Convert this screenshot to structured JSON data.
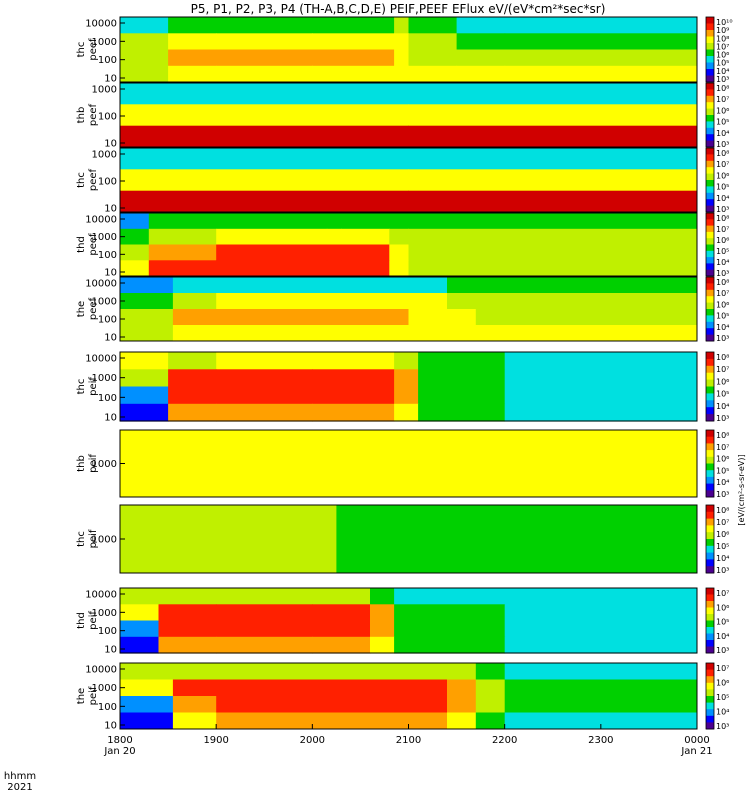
{
  "title": "P5, P1, P2, P3, P4 (TH-A,B,C,D,E) PEIF,PEEF EFlux eV/(eV*cm²*sec*sr)",
  "x_axis": {
    "row_label": "hhmm",
    "year_label": "2021",
    "ticks": [
      {
        "v": 1800,
        "label": "1800",
        "sub": "Jan 20"
      },
      {
        "v": 1900,
        "label": "1900",
        "sub": ""
      },
      {
        "v": 2000,
        "label": "2000",
        "sub": ""
      },
      {
        "v": 2100,
        "label": "2100",
        "sub": ""
      },
      {
        "v": 2200,
        "label": "2200",
        "sub": ""
      },
      {
        "v": 2300,
        "label": "2300",
        "sub": ""
      },
      {
        "v": 2400,
        "label": "0000",
        "sub": "Jan 21"
      }
    ]
  },
  "colorbar_label": "[eV/(cm²-s-sr-eV)]",
  "colormap": [
    "#4b0090",
    "#0000ff",
    "#0090ff",
    "#00e0e0",
    "#00d000",
    "#c0f000",
    "#ffff00",
    "#ffa000",
    "#ff2000",
    "#d00000"
  ],
  "panels": [
    {
      "label1": "thc",
      "label2": "peef",
      "yticks": [
        "10000",
        "1000",
        "100",
        "10"
      ],
      "cticks": [
        "10¹⁰",
        "10⁹",
        "10⁸",
        "10⁷",
        "10⁶",
        "10⁵",
        "10⁴",
        "10³"
      ]
    },
    {
      "label1": "thb",
      "label2": "peef",
      "yticks": [
        "1000",
        "100",
        "10"
      ],
      "cticks": [
        "10⁸",
        "10⁷",
        "10⁶",
        "10⁵",
        "10⁴",
        "10³"
      ]
    },
    {
      "label1": "thc",
      "label2": "peef",
      "yticks": [
        "1000",
        "100",
        "10"
      ],
      "cticks": [
        "10⁸",
        "10⁷",
        "10⁶",
        "10⁵",
        "10⁴",
        "10³"
      ]
    },
    {
      "label1": "thd",
      "label2": "peef",
      "yticks": [
        "10000",
        "1000",
        "100",
        "10"
      ],
      "cticks": [
        "10⁸",
        "10⁷",
        "10⁶",
        "10⁵",
        "10⁴",
        "10³"
      ]
    },
    {
      "label1": "the",
      "label2": "peef",
      "yticks": [
        "10000",
        "1000",
        "100",
        "10"
      ],
      "cticks": [
        "10⁸",
        "10⁷",
        "10⁶",
        "10⁵",
        "10⁴",
        "10³"
      ]
    },
    {
      "label1": "thc",
      "label2": "peif",
      "yticks": [
        "10000",
        "1000",
        "100",
        "10"
      ],
      "cticks": [
        "10⁸",
        "10⁷",
        "10⁶",
        "10⁵",
        "10⁴",
        "10³"
      ]
    },
    {
      "label1": "thb",
      "label2": "peif",
      "yticks": [
        "1000"
      ],
      "cticks": [
        "10⁸",
        "10⁷",
        "10⁶",
        "10⁵",
        "10⁴",
        "10³"
      ]
    },
    {
      "label1": "thc",
      "label2": "peif",
      "yticks": [
        "1000"
      ],
      "cticks": [
        "10⁸",
        "10⁷",
        "10⁶",
        "10⁵",
        "10⁴",
        "10³"
      ]
    },
    {
      "label1": "thd",
      "label2": "peif",
      "yticks": [
        "10000",
        "1000",
        "100",
        "10"
      ],
      "cticks": [
        "10⁷",
        "10⁶",
        "10⁵",
        "10⁴",
        "10³"
      ]
    },
    {
      "label1": "the",
      "label2": "peif",
      "yticks": [
        "10000",
        "1000",
        "100",
        "10"
      ],
      "cticks": [
        "10⁷",
        "10⁶",
        "10⁵",
        "10⁴",
        "10³"
      ]
    }
  ],
  "chart_data": {
    "type": "heatmap",
    "x_range": [
      1800,
      2400
    ],
    "panels": [
      {
        "name": "thc peef",
        "x": [
          1800,
          1850,
          1900,
          2000,
          2085,
          2100,
          2150,
          2200,
          2400
        ],
        "bands": [
          {
            "energy_eV": 10000,
            "level": [
              3,
              4,
              4,
              4,
              5,
              4,
              3,
              3,
              3
            ]
          },
          {
            "energy_eV": 1000,
            "level": [
              5,
              6,
              6,
              6,
              6,
              5,
              4,
              4,
              4
            ]
          },
          {
            "energy_eV": 100,
            "level": [
              5,
              7,
              7,
              7,
              6,
              5,
              5,
              5,
              5
            ]
          },
          {
            "energy_eV": 10,
            "level": [
              5,
              6,
              6,
              6,
              6,
              6,
              6,
              6,
              6
            ]
          }
        ]
      },
      {
        "name": "thb peef",
        "x": [
          1800,
          2100,
          2400
        ],
        "bands": [
          {
            "energy_eV": 1000,
            "level": [
              3,
              3,
              3
            ]
          },
          {
            "energy_eV": 100,
            "level": [
              6,
              6,
              6
            ]
          },
          {
            "energy_eV": 10,
            "level": [
              9,
              9,
              9
            ]
          }
        ]
      },
      {
        "name": "thc peef",
        "x": [
          1800,
          2100,
          2400
        ],
        "bands": [
          {
            "energy_eV": 1000,
            "level": [
              3,
              3,
              3
            ]
          },
          {
            "energy_eV": 100,
            "level": [
              6,
              6,
              6
            ]
          },
          {
            "energy_eV": 10,
            "level": [
              9,
              9,
              9
            ]
          }
        ]
      },
      {
        "name": "thd peef",
        "x": [
          1800,
          1830,
          1900,
          2015,
          2030,
          2080,
          2100,
          2400
        ],
        "bands": [
          {
            "energy_eV": 10000,
            "level": [
              2,
              4,
              4,
              4,
              4,
              4,
              4,
              4
            ]
          },
          {
            "energy_eV": 1000,
            "level": [
              4,
              5,
              6,
              6,
              6,
              5,
              5,
              4
            ]
          },
          {
            "energy_eV": 100,
            "level": [
              5,
              7,
              8,
              8,
              8,
              6,
              5,
              5
            ]
          },
          {
            "energy_eV": 10,
            "level": [
              6,
              8,
              8,
              8,
              8,
              6,
              5,
              5
            ]
          }
        ]
      },
      {
        "name": "the peef",
        "x": [
          1800,
          1855,
          1900,
          2000,
          2100,
          2140,
          2170,
          2400
        ],
        "bands": [
          {
            "energy_eV": 10000,
            "level": [
              2,
              3,
              3,
              3,
              3,
              4,
              4,
              4
            ]
          },
          {
            "energy_eV": 1000,
            "level": [
              4,
              5,
              6,
              6,
              6,
              5,
              5,
              4
            ]
          },
          {
            "energy_eV": 100,
            "level": [
              5,
              7,
              7,
              7,
              6,
              6,
              5,
              5
            ]
          },
          {
            "energy_eV": 10,
            "level": [
              5,
              6,
              6,
              6,
              6,
              6,
              6,
              6
            ]
          }
        ]
      },
      {
        "name": "thc peif",
        "x": [
          1800,
          1850,
          1900,
          2000,
          2085,
          2110,
          2200,
          2400
        ],
        "bands": [
          {
            "energy_eV": 10000,
            "level": [
              6,
              5,
              6,
              6,
              5,
              4,
              3,
              3
            ]
          },
          {
            "energy_eV": 1000,
            "level": [
              5,
              8,
              8,
              8,
              7,
              4,
              3,
              3
            ]
          },
          {
            "energy_eV": 100,
            "level": [
              2,
              8,
              8,
              8,
              7,
              4,
              3,
              3
            ]
          },
          {
            "energy_eV": 10,
            "level": [
              1,
              7,
              7,
              7,
              6,
              4,
              3,
              3
            ]
          }
        ]
      },
      {
        "name": "thb peif",
        "x": [
          1800,
          2100,
          2400
        ],
        "bands": [
          {
            "energy_eV": 1000,
            "level": [
              6,
              6,
              6
            ]
          }
        ]
      },
      {
        "name": "thc peif",
        "x": [
          1800,
          2000,
          2025,
          2400
        ],
        "bands": [
          {
            "energy_eV": 1000,
            "level": [
              5,
              5,
              4,
              4
            ]
          }
        ]
      },
      {
        "name": "thd peif",
        "x": [
          1800,
          1840,
          1900,
          2000,
          2060,
          2085,
          2200,
          2400
        ],
        "bands": [
          {
            "energy_eV": 10000,
            "level": [
              5,
              5,
              5,
              5,
              4,
              3,
              3,
              3
            ]
          },
          {
            "energy_eV": 1000,
            "level": [
              6,
              8,
              8,
              8,
              7,
              4,
              3,
              3
            ]
          },
          {
            "energy_eV": 100,
            "level": [
              2,
              8,
              8,
              8,
              7,
              4,
              3,
              3
            ]
          },
          {
            "energy_eV": 10,
            "level": [
              1,
              7,
              7,
              7,
              6,
              4,
              3,
              3
            ]
          }
        ]
      },
      {
        "name": "the peif",
        "x": [
          1800,
          1855,
          1900,
          2000,
          2140,
          2170,
          2200,
          2400
        ],
        "bands": [
          {
            "energy_eV": 10000,
            "level": [
              5,
              5,
              5,
              5,
              5,
              4,
              3,
              3
            ]
          },
          {
            "energy_eV": 1000,
            "level": [
              6,
              8,
              8,
              8,
              7,
              5,
              4,
              3
            ]
          },
          {
            "energy_eV": 100,
            "level": [
              2,
              7,
              8,
              8,
              7,
              5,
              4,
              3
            ]
          },
          {
            "energy_eV": 10,
            "level": [
              1,
              6,
              7,
              7,
              6,
              4,
              3,
              3
            ]
          }
        ]
      }
    ]
  }
}
